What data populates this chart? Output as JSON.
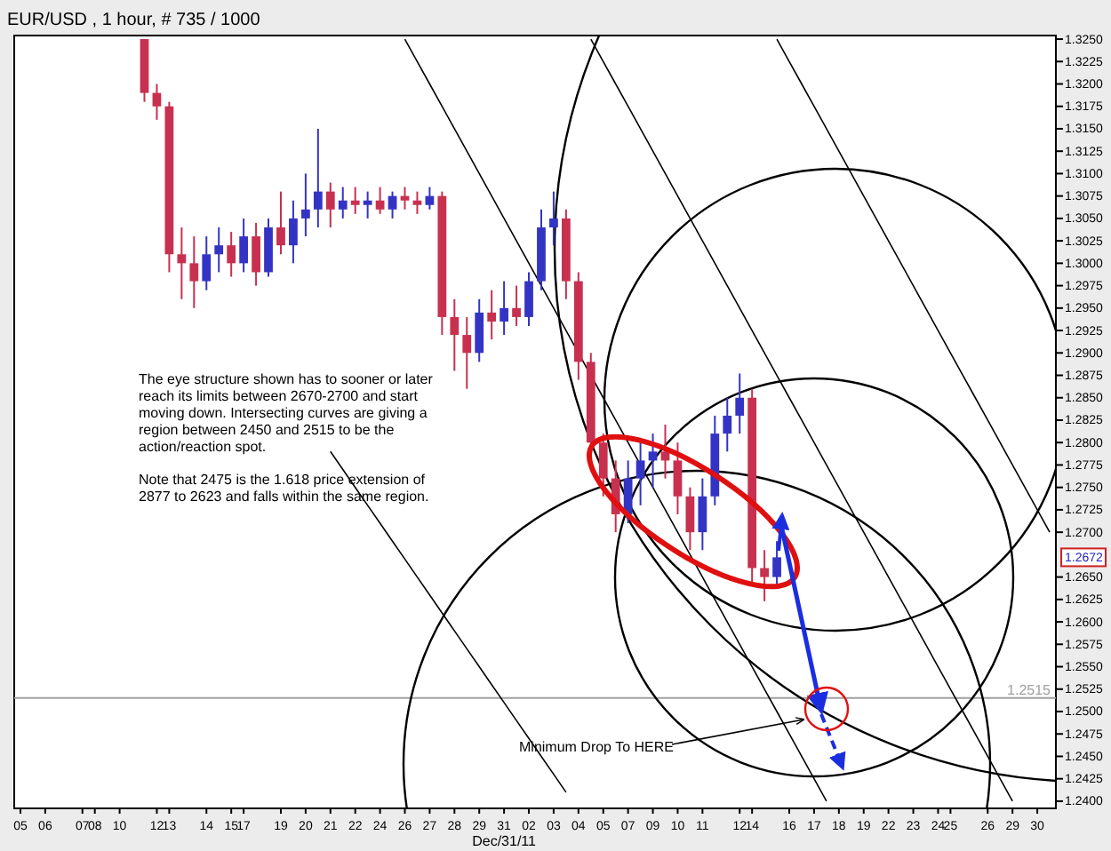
{
  "chart_data": {
    "type": "candlestick",
    "title": "EUR/USD , 1 hour, # 735 / 1000",
    "xlabel": "Dec/31/11",
    "categories": [
      "05",
      null,
      "06",
      null,
      null,
      "07",
      "08",
      null,
      "10",
      null,
      null,
      "12",
      "13",
      null,
      null,
      "14",
      null,
      "15",
      "17",
      null,
      null,
      "19",
      null,
      "20",
      null,
      "21",
      null,
      "22",
      null,
      "24",
      null,
      "26",
      null,
      "27",
      null,
      "28",
      null,
      "29",
      null,
      "31",
      null,
      "02",
      null,
      "03",
      null,
      "04",
      null,
      "05",
      null,
      "07",
      null,
      "09",
      null,
      "10",
      null,
      "11",
      null,
      null,
      "12",
      "14",
      null,
      null,
      "16",
      null,
      "17",
      null,
      "18",
      null,
      "19",
      null,
      "22",
      null,
      "23",
      null,
      "24",
      "25",
      null,
      null,
      "26",
      null,
      "29",
      null,
      "30",
      null
    ],
    "ohlc": [
      null,
      null,
      null,
      null,
      null,
      null,
      null,
      null,
      null,
      null,
      [
        1.325,
        1.325,
        1.318,
        1.319
      ],
      [
        1.319,
        1.32,
        1.316,
        1.3175
      ],
      [
        1.3175,
        1.318,
        1.299,
        1.301
      ],
      [
        1.301,
        1.304,
        1.296,
        1.3
      ],
      [
        1.3,
        1.303,
        1.295,
        1.298
      ],
      [
        1.298,
        1.303,
        1.297,
        1.301
      ],
      [
        1.301,
        1.304,
        1.299,
        1.302
      ],
      [
        1.302,
        1.3035,
        1.2985,
        1.3
      ],
      [
        1.3,
        1.305,
        1.299,
        1.303
      ],
      [
        1.303,
        1.3045,
        1.2975,
        1.299
      ],
      [
        1.299,
        1.305,
        1.2985,
        1.304
      ],
      [
        1.304,
        1.308,
        1.301,
        1.302
      ],
      [
        1.302,
        1.307,
        1.3,
        1.305
      ],
      [
        1.305,
        1.31,
        1.303,
        1.306
      ],
      [
        1.306,
        1.315,
        1.304,
        1.308
      ],
      [
        1.308,
        1.309,
        1.304,
        1.306
      ],
      [
        1.306,
        1.3085,
        1.305,
        1.307
      ],
      [
        1.307,
        1.3085,
        1.3055,
        1.3065
      ],
      [
        1.3065,
        1.308,
        1.305,
        1.307
      ],
      [
        1.307,
        1.3085,
        1.3055,
        1.306
      ],
      [
        1.306,
        1.308,
        1.305,
        1.3075
      ],
      [
        1.3075,
        1.3085,
        1.306,
        1.307
      ],
      [
        1.307,
        1.308,
        1.3055,
        1.3065
      ],
      [
        1.3065,
        1.3085,
        1.306,
        1.3075
      ],
      [
        1.3075,
        1.308,
        1.292,
        1.294
      ],
      [
        1.294,
        1.296,
        1.288,
        1.292
      ],
      [
        1.292,
        1.294,
        1.286,
        1.29
      ],
      [
        1.29,
        1.296,
        1.289,
        1.2945
      ],
      [
        1.2945,
        1.297,
        1.2915,
        1.2935
      ],
      [
        1.2935,
        1.298,
        1.292,
        1.295
      ],
      [
        1.295,
        1.2975,
        1.293,
        1.294
      ],
      [
        1.294,
        1.299,
        1.293,
        1.298
      ],
      [
        1.298,
        1.306,
        1.297,
        1.304
      ],
      [
        1.304,
        1.308,
        1.302,
        1.305
      ],
      [
        1.305,
        1.306,
        1.296,
        1.298
      ],
      [
        1.298,
        1.299,
        1.287,
        1.289
      ],
      [
        1.289,
        1.29,
        1.278,
        1.28
      ],
      [
        1.28,
        1.281,
        1.274,
        1.276
      ],
      [
        1.276,
        1.278,
        1.27,
        1.272
      ],
      [
        1.272,
        1.278,
        1.271,
        1.276
      ],
      [
        1.276,
        1.28,
        1.273,
        1.278
      ],
      [
        1.278,
        1.281,
        1.275,
        1.279
      ],
      [
        1.279,
        1.282,
        1.276,
        1.278
      ],
      [
        1.278,
        1.28,
        1.272,
        1.274
      ],
      [
        1.274,
        1.275,
        1.268,
        1.27
      ],
      [
        1.27,
        1.276,
        1.268,
        1.274
      ],
      [
        1.274,
        1.283,
        1.273,
        1.281
      ],
      [
        1.281,
        1.285,
        1.279,
        1.283
      ],
      [
        1.283,
        1.2877,
        1.281,
        1.285
      ],
      [
        1.285,
        1.286,
        1.264,
        1.266
      ],
      [
        1.266,
        1.268,
        1.2623,
        1.265
      ],
      [
        1.265,
        1.269,
        1.264,
        1.2672
      ],
      null,
      null,
      null,
      null,
      null,
      null,
      null,
      null,
      null,
      null,
      null,
      null,
      null,
      null,
      null,
      null,
      null,
      null,
      null,
      null,
      null,
      null
    ],
    "ylim": [
      1.2392,
      1.3254
    ],
    "yticks": [
      {
        "value": 1.24,
        "label": "1.2400"
      },
      {
        "value": 1.2425,
        "label": "1.2425"
      },
      {
        "value": 1.245,
        "label": "1.2450"
      },
      {
        "value": 1.2475,
        "label": "1.2475"
      },
      {
        "value": 1.25,
        "label": "1.2500"
      },
      {
        "value": 1.2525,
        "label": "1.2525"
      },
      {
        "value": 1.255,
        "label": "1.2550"
      },
      {
        "value": 1.2575,
        "label": "1.2575"
      },
      {
        "value": 1.26,
        "label": "1.2600"
      },
      {
        "value": 1.2625,
        "label": "1.2625"
      },
      {
        "value": 1.265,
        "label": "1.2650"
      },
      {
        "value": 1.27,
        "label": "1.2700"
      },
      {
        "value": 1.2725,
        "label": "1.2725"
      },
      {
        "value": 1.275,
        "label": "1.2750"
      },
      {
        "value": 1.2775,
        "label": "1.2775"
      },
      {
        "value": 1.28,
        "label": "1.2800"
      },
      {
        "value": 1.2825,
        "label": "1.2825"
      },
      {
        "value": 1.285,
        "label": "1.2850"
      },
      {
        "value": 1.2875,
        "label": "1.2875"
      },
      {
        "value": 1.29,
        "label": "1.2900"
      },
      {
        "value": 1.2925,
        "label": "1.2925"
      },
      {
        "value": 1.295,
        "label": "1.2950"
      },
      {
        "value": 1.2975,
        "label": "1.2975"
      },
      {
        "value": 1.3,
        "label": "1.3000"
      },
      {
        "value": 1.3025,
        "label": "1.3025"
      },
      {
        "value": 1.305,
        "label": "1.3050"
      },
      {
        "value": 1.3075,
        "label": "1.3075"
      },
      {
        "value": 1.31,
        "label": "1.3100"
      },
      {
        "value": 1.3125,
        "label": "1.3125"
      },
      {
        "value": 1.315,
        "label": "1.3150"
      },
      {
        "value": 1.3175,
        "label": "1.3175"
      },
      {
        "value": 1.32,
        "label": "1.3200"
      },
      {
        "value": 1.3225,
        "label": "1.3225"
      },
      {
        "value": 1.325,
        "label": "1.3250"
      }
    ],
    "ref_lines": [
      {
        "axis": "y",
        "value": 1.2515,
        "label": "1.2515",
        "color": "#a0a0a0"
      }
    ],
    "annotations": [
      "1.2672",
      "The eye structure shown has to sooner or later reach its limits between 2670-2700 and start moving down.  Intersecting curves are giving a region between 2450 and 2515 to be the action/reaction spot.",
      "Note that 2475 is the 1.618 price extension of 2877 to 2623 and falls within the same region.",
      "Minimum Drop To HERE"
    ],
    "series": [
      {
        "type": "line",
        "color": "#000000",
        "values": [
          null,
          null,
          null,
          null,
          null,
          null,
          null,
          null,
          null,
          null,
          null,
          null,
          null,
          null,
          null,
          null,
          null,
          null,
          null,
          null,
          null,
          null,
          null,
          null,
          null,
          null,
          null,
          null,
          null,
          null,
          null,
          1.325,
          1.3225,
          1.32,
          1.3175,
          1.315,
          1.3125,
          1.31,
          1.3075,
          1.305,
          1.3025,
          1.3,
          1.2975,
          1.295,
          1.2925,
          1.29,
          1.2875,
          1.285,
          1.2825,
          1.28,
          1.2775,
          1.275,
          1.2725,
          1.27,
          1.2675,
          1.265,
          1.2625,
          1.26,
          1.2575,
          1.255,
          1.2525,
          1.25,
          1.2475,
          1.245,
          1.2425,
          1.24,
          null,
          null,
          null,
          null,
          null,
          null,
          null,
          null,
          null,
          null,
          null,
          null,
          null,
          null,
          null,
          null,
          null,
          null
        ]
      },
      {
        "type": "line",
        "color": "#000000",
        "values": [
          null,
          null,
          null,
          null,
          null,
          null,
          null,
          null,
          null,
          null,
          null,
          null,
          null,
          null,
          null,
          null,
          null,
          null,
          null,
          null,
          null,
          null,
          null,
          null,
          null,
          null,
          null,
          null,
          null,
          null,
          null,
          null,
          null,
          null,
          null,
          null,
          null,
          null,
          null,
          null,
          null,
          null,
          null,
          null,
          null,
          null,
          1.325,
          1.3225,
          1.32,
          1.3175,
          1.315,
          1.3125,
          1.31,
          1.3075,
          1.305,
          1.3025,
          1.3,
          1.2975,
          1.295,
          1.2925,
          1.29,
          1.2875,
          1.285,
          1.2825,
          1.28,
          1.2775,
          1.275,
          1.2725,
          1.27,
          1.2675,
          1.265,
          1.2625,
          1.26,
          1.2575,
          1.255,
          1.2525,
          1.25,
          1.2475,
          1.245,
          1.2425,
          1.24,
          null,
          null,
          null
        ]
      },
      {
        "type": "line",
        "color": "#000000",
        "values": [
          null,
          null,
          null,
          null,
          null,
          null,
          null,
          null,
          null,
          null,
          null,
          null,
          null,
          null,
          null,
          null,
          null,
          null,
          null,
          null,
          null,
          null,
          null,
          null,
          null,
          null,
          null,
          null,
          null,
          null,
          null,
          null,
          null,
          null,
          null,
          null,
          null,
          null,
          null,
          null,
          null,
          null,
          null,
          null,
          null,
          null,
          null,
          null,
          null,
          null,
          null,
          null,
          null,
          null,
          null,
          null,
          null,
          null,
          null,
          null,
          null,
          1.325,
          1.3225,
          1.32,
          1.3175,
          1.315,
          1.3125,
          1.31,
          1.3075,
          1.305,
          1.3025,
          1.3,
          1.2975,
          1.295,
          1.2925,
          1.29,
          1.2875,
          1.285,
          1.2825,
          1.28,
          1.2775,
          1.275,
          1.2725,
          1.27
        ]
      },
      {
        "type": "line",
        "color": "#000000",
        "values": [
          null,
          null,
          null,
          null,
          null,
          null,
          null,
          null,
          null,
          null,
          null,
          null,
          null,
          null,
          null,
          null,
          null,
          null,
          null,
          null,
          null,
          null,
          null,
          null,
          null,
          1.279,
          1.277,
          1.275,
          1.273,
          1.271,
          1.269,
          1.267,
          1.265,
          1.263,
          1.261,
          1.259,
          1.257,
          1.255,
          1.253,
          1.251,
          1.249,
          1.247,
          1.245,
          1.243,
          1.241,
          null,
          null,
          null,
          null,
          null,
          null,
          null,
          null,
          null,
          null,
          null,
          null,
          null,
          null,
          null,
          null,
          null,
          null,
          null,
          null,
          null,
          null,
          null,
          null,
          null,
          null,
          null,
          null,
          null,
          null,
          null,
          null,
          null,
          null,
          null,
          null,
          null,
          null,
          null
        ]
      }
    ],
    "tick_labels": "xy"
  }
}
